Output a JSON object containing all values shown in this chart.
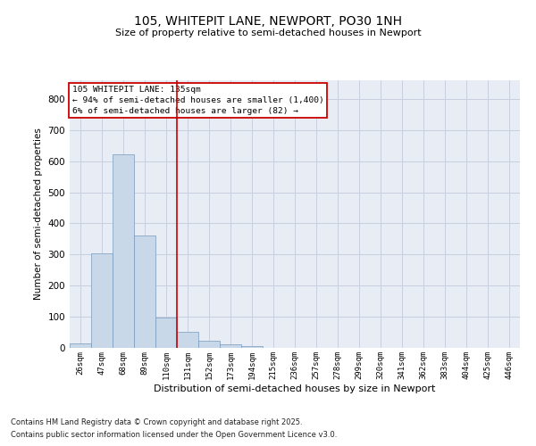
{
  "title_line1": "105, WHITEPIT LANE, NEWPORT, PO30 1NH",
  "title_line2": "Size of property relative to semi-detached houses in Newport",
  "xlabel": "Distribution of semi-detached houses by size in Newport",
  "ylabel": "Number of semi-detached properties",
  "annotation_title": "105 WHITEPIT LANE: 135sqm",
  "annotation_line2": "← 94% of semi-detached houses are smaller (1,400)",
  "annotation_line3": "6% of semi-detached houses are larger (82) →",
  "footer_line1": "Contains HM Land Registry data © Crown copyright and database right 2025.",
  "footer_line2": "Contains public sector information licensed under the Open Government Licence v3.0.",
  "bar_color": "#c8d8e8",
  "bar_edge_color": "#7799bb",
  "grid_color": "#c8d0e0",
  "vline_color": "#cc0000",
  "annotation_box_edgecolor": "#cc0000",
  "bins": [
    "26sqm",
    "47sqm",
    "68sqm",
    "89sqm",
    "110sqm",
    "131sqm",
    "152sqm",
    "173sqm",
    "194sqm",
    "215sqm",
    "236sqm",
    "257sqm",
    "278sqm",
    "299sqm",
    "320sqm",
    "341sqm",
    "362sqm",
    "383sqm",
    "404sqm",
    "425sqm",
    "446sqm"
  ],
  "values": [
    13,
    303,
    621,
    360,
    97,
    52,
    22,
    12,
    5,
    1,
    0,
    0,
    0,
    0,
    0,
    0,
    0,
    0,
    0,
    0,
    0
  ],
  "ylim": [
    0,
    860
  ],
  "yticks": [
    0,
    100,
    200,
    300,
    400,
    500,
    600,
    700,
    800
  ],
  "vline_x": 4.5,
  "bg_color": "#e8edf5"
}
